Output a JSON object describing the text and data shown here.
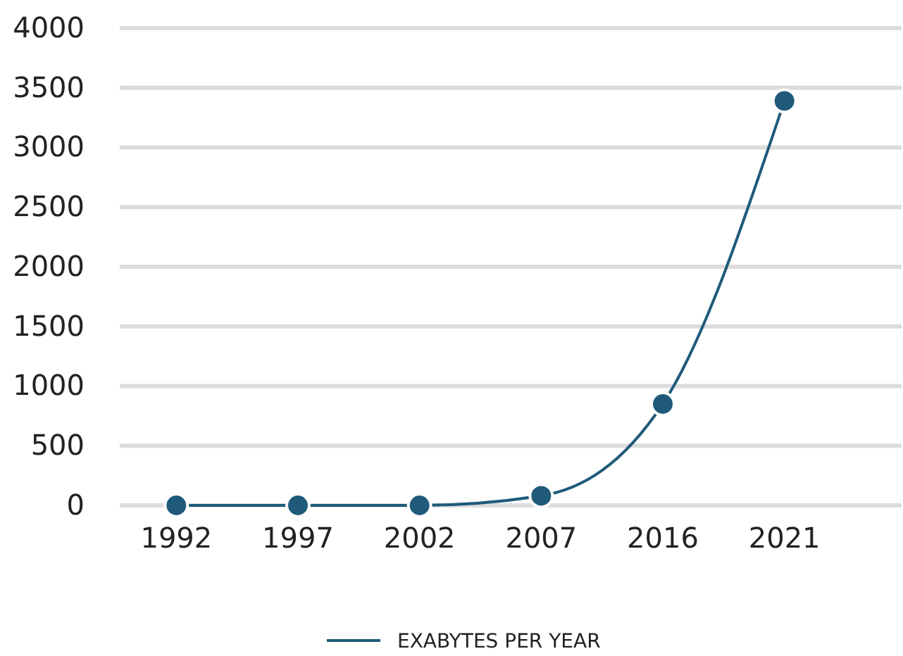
{
  "chart_data": {
    "type": "line",
    "categories": [
      "1992",
      "1997",
      "2002",
      "2007",
      "2016",
      "2021"
    ],
    "series": [
      {
        "name": "EXABYTES PER YEAR",
        "color": "#1f5a7a",
        "values": [
          0,
          0,
          0,
          80,
          850,
          3390
        ]
      }
    ],
    "ylim": [
      0,
      4000
    ],
    "yticks": [
      0,
      500,
      1000,
      1500,
      2000,
      2500,
      3000,
      3500,
      4000
    ],
    "grid": "y",
    "legend": "bottom",
    "marker": "circle",
    "line_style": "solid"
  }
}
